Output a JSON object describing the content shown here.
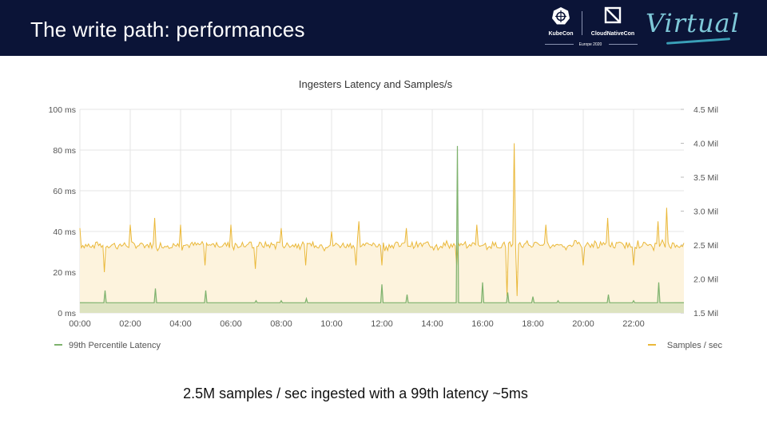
{
  "slide": {
    "title": "The write path: performances",
    "caption": "2.5M samples / sec ingested with a 99th latency ~5ms"
  },
  "branding": {
    "kubecon": "KubeCon",
    "cloudnativecon": "CloudNativeCon",
    "event": "Europe 2020",
    "virtual": "Virtual"
  },
  "colors": {
    "header_bg": "#0b1437",
    "latency": "#7eb26d",
    "samples": "#eab839",
    "samples_fill": "#fdf3dd",
    "grid": "#e4e4e4"
  },
  "chart_data": {
    "type": "line",
    "title": "Ingesters Latency and Samples/s",
    "x_ticks": [
      "00:00",
      "02:00",
      "04:00",
      "06:00",
      "08:00",
      "10:00",
      "12:00",
      "14:00",
      "16:00",
      "18:00",
      "20:00",
      "22:00"
    ],
    "x_range_hours": [
      0,
      24
    ],
    "y_left": {
      "unit": "ms",
      "range": [
        0,
        100
      ],
      "ticks": [
        "0 ms",
        "20 ms",
        "40 ms",
        "60 ms",
        "80 ms",
        "100 ms"
      ]
    },
    "y_right": {
      "unit": "Mil",
      "range": [
        1.5,
        4.5
      ],
      "ticks": [
        "1.5 Mil",
        "2.0 Mil",
        "2.5 Mil",
        "3.0 Mil",
        "3.5 Mil",
        "4.0 Mil",
        "4.5 Mil"
      ]
    },
    "legend": {
      "placement": "bottom",
      "left": "99th Percentile Latency",
      "right": "Samples / sec"
    },
    "series": [
      {
        "name": "99th Percentile Latency",
        "axis": "left",
        "baseline_ms": 5,
        "spikes": [
          {
            "h": 1.0,
            "v": 11
          },
          {
            "h": 3.0,
            "v": 12
          },
          {
            "h": 5.0,
            "v": 11
          },
          {
            "h": 7.0,
            "v": 6
          },
          {
            "h": 8.0,
            "v": 6
          },
          {
            "h": 9.0,
            "v": 7
          },
          {
            "h": 12.0,
            "v": 14
          },
          {
            "h": 13.0,
            "v": 9
          },
          {
            "h": 15.0,
            "v": 82
          },
          {
            "h": 16.0,
            "v": 15
          },
          {
            "h": 17.0,
            "v": 10
          },
          {
            "h": 18.0,
            "v": 8
          },
          {
            "h": 19.0,
            "v": 6
          },
          {
            "h": 20.0,
            "v": 5
          },
          {
            "h": 21.0,
            "v": 9
          },
          {
            "h": 22.0,
            "v": 6
          },
          {
            "h": 23.0,
            "v": 15
          }
        ]
      },
      {
        "name": "Samples / sec",
        "axis": "right",
        "baseline_mil": 2.5,
        "noise_mil": 0.05,
        "spikes": [
          {
            "h": 0.0,
            "v": 2.75
          },
          {
            "h": 1.0,
            "v": 2.1
          },
          {
            "h": 2.0,
            "v": 2.8
          },
          {
            "h": 3.0,
            "v": 2.9
          },
          {
            "h": 4.0,
            "v": 2.8
          },
          {
            "h": 5.0,
            "v": 2.2
          },
          {
            "h": 6.0,
            "v": 2.8
          },
          {
            "h": 7.0,
            "v": 2.15
          },
          {
            "h": 8.0,
            "v": 2.75
          },
          {
            "h": 9.0,
            "v": 2.2
          },
          {
            "h": 10.0,
            "v": 2.7
          },
          {
            "h": 11.0,
            "v": 2.2
          },
          {
            "h": 11.1,
            "v": 2.85
          },
          {
            "h": 12.0,
            "v": 2.2
          },
          {
            "h": 13.0,
            "v": 2.75
          },
          {
            "h": 15.0,
            "v": 2.2
          },
          {
            "h": 15.8,
            "v": 2.8
          },
          {
            "h": 17.0,
            "v": 2.15
          },
          {
            "h": 17.25,
            "v": 4.0
          },
          {
            "h": 17.0,
            "v": 1.75
          },
          {
            "h": 17.4,
            "v": 1.75
          },
          {
            "h": 18.5,
            "v": 2.8
          },
          {
            "h": 20.0,
            "v": 2.2
          },
          {
            "h": 21.0,
            "v": 2.9
          },
          {
            "h": 22.0,
            "v": 2.2
          },
          {
            "h": 23.0,
            "v": 2.85
          },
          {
            "h": 23.3,
            "v": 3.05
          }
        ]
      }
    ]
  }
}
